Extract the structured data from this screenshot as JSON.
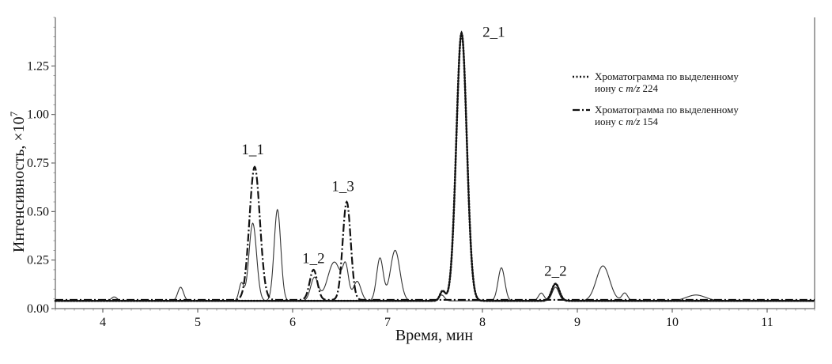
{
  "chart_data": {
    "type": "line",
    "xlabel": "Время, мин",
    "ylabel": "Интенсивность, ×10",
    "ylabel_exp": "7",
    "xlim": [
      3.5,
      11.5
    ],
    "ylim": [
      0,
      1.5
    ],
    "x_ticks": [
      4,
      5,
      6,
      7,
      8,
      9,
      10,
      11
    ],
    "y_ticks": [
      0.0,
      0.25,
      0.5,
      0.75,
      1.0,
      1.25
    ],
    "y_tick_labels": [
      "0.00",
      "0.25",
      "0.50",
      "0.75",
      "1.00",
      "1.25"
    ],
    "grid": false,
    "legend_position": "top-right",
    "legend": [
      {
        "line1": "Хроматограмма по выделенному",
        "line2_prefix": "иону с ",
        "mz": "m/z",
        "line2_value": " 224",
        "style": "dotted"
      },
      {
        "line1": "Хроматограмма по выделенному",
        "line2_prefix": "иону с ",
        "mz": "m/z",
        "line2_value": " 154",
        "style": "dashdot"
      }
    ],
    "annotations": [
      {
        "text": "1_1",
        "x": 5.58,
        "y": 0.795
      },
      {
        "text": "1_2",
        "x": 6.22,
        "y": 0.235
      },
      {
        "text": "1_3",
        "x": 6.53,
        "y": 0.605
      },
      {
        "text": "2_1",
        "x": 8.12,
        "y": 1.4
      },
      {
        "text": "2_2",
        "x": 8.77,
        "y": 0.17
      }
    ],
    "series": [
      {
        "style": "solid",
        "baseline": 0.04,
        "peaks": [
          [
            4.12,
            0.02,
            0.03
          ],
          [
            4.82,
            0.07,
            0.03
          ],
          [
            5.46,
            0.09,
            0.025
          ],
          [
            5.58,
            0.4,
            0.04
          ],
          [
            5.84,
            0.47,
            0.035
          ],
          [
            6.23,
            0.12,
            0.04
          ],
          [
            6.44,
            0.2,
            0.07
          ],
          [
            6.56,
            0.15,
            0.03
          ],
          [
            6.68,
            0.1,
            0.04
          ],
          [
            6.92,
            0.22,
            0.035
          ],
          [
            7.08,
            0.26,
            0.05
          ],
          [
            7.57,
            0.03,
            0.03
          ],
          [
            8.2,
            0.17,
            0.035
          ],
          [
            8.62,
            0.04,
            0.03
          ],
          [
            8.77,
            0.07,
            0.035
          ],
          [
            9.27,
            0.18,
            0.07
          ],
          [
            9.5,
            0.04,
            0.03
          ],
          [
            10.25,
            0.03,
            0.1
          ]
        ]
      },
      {
        "style": "dotted",
        "baseline": 0.04,
        "peaks": [
          [
            7.58,
            0.05,
            0.028
          ],
          [
            7.78,
            1.38,
            0.055
          ],
          [
            8.77,
            0.088,
            0.04
          ]
        ]
      },
      {
        "style": "dashdot",
        "baseline": 0.045,
        "peaks": [
          [
            5.6,
            0.685,
            0.055
          ],
          [
            6.22,
            0.155,
            0.04
          ],
          [
            6.57,
            0.505,
            0.042
          ]
        ]
      }
    ]
  }
}
